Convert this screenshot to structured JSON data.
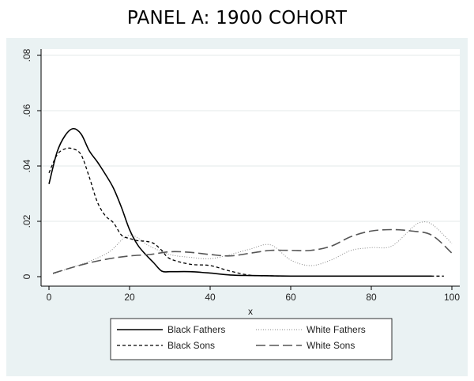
{
  "title": "PANEL A: 1900 COHORT",
  "chart_data": {
    "type": "line",
    "title": "PANEL A: 1900 COHORT",
    "xlabel": "x",
    "ylabel": "",
    "xlim": [
      0,
      100
    ],
    "ylim": [
      0,
      0.08
    ],
    "x_ticks": [
      0,
      20,
      40,
      60,
      80,
      100
    ],
    "x_tick_labels": [
      "0",
      "20",
      "40",
      "60",
      "80",
      "100"
    ],
    "y_ticks": [
      0,
      0.02,
      0.04,
      0.06,
      0.08
    ],
    "y_tick_labels": [
      "0",
      ".02",
      ".04",
      ".06",
      ".08"
    ],
    "grid": true,
    "legend_position": "bottom",
    "series": [
      {
        "name": "Black Fathers",
        "style": "solid",
        "color": "#000000",
        "x": [
          0,
          2,
          4,
          6,
          8,
          10,
          12,
          14,
          16,
          18,
          20,
          22,
          24,
          26,
          28,
          30,
          35,
          40,
          45,
          50,
          55,
          60,
          70,
          80,
          90,
          95
        ],
        "y": [
          0.0335,
          0.045,
          0.051,
          0.0535,
          0.0515,
          0.0455,
          0.0415,
          0.037,
          0.032,
          0.025,
          0.017,
          0.0115,
          0.008,
          0.005,
          0.002,
          0.0018,
          0.0018,
          0.0013,
          0.0006,
          0.0004,
          0.0003,
          0.0002,
          0.0002,
          0.0002,
          0.0002,
          0.0002
        ]
      },
      {
        "name": "White Fathers",
        "style": "dotted",
        "color": "#888888",
        "x": [
          1,
          5,
          10,
          15,
          20,
          25,
          30,
          35,
          40,
          45,
          50,
          55,
          60,
          65,
          70,
          75,
          80,
          85,
          90,
          92,
          95,
          100
        ],
        "y": [
          0.001,
          0.003,
          0.0055,
          0.009,
          0.015,
          0.011,
          0.008,
          0.007,
          0.0065,
          0.008,
          0.01,
          0.0115,
          0.006,
          0.004,
          0.006,
          0.0095,
          0.0105,
          0.011,
          0.0175,
          0.0195,
          0.019,
          0.012
        ]
      },
      {
        "name": "Black Sons",
        "style": "dashed-short",
        "color": "#000000",
        "x": [
          0,
          2,
          4,
          6,
          8,
          10,
          12,
          14,
          16,
          18,
          20,
          22,
          24,
          26,
          28,
          30,
          35,
          40,
          45,
          50,
          55,
          60,
          70,
          80,
          90,
          98
        ],
        "y": [
          0.0375,
          0.044,
          0.0462,
          0.0462,
          0.044,
          0.036,
          0.027,
          0.022,
          0.0195,
          0.015,
          0.0138,
          0.013,
          0.0128,
          0.012,
          0.0095,
          0.0065,
          0.0045,
          0.004,
          0.002,
          0.0005,
          0.0003,
          0.0002,
          0.0002,
          0.0002,
          0.0002,
          0.0002
        ]
      },
      {
        "name": "White Sons",
        "style": "dashed-long",
        "color": "#555555",
        "x": [
          1,
          5,
          10,
          15,
          20,
          25,
          30,
          35,
          40,
          45,
          50,
          55,
          60,
          65,
          70,
          75,
          80,
          85,
          90,
          95,
          100
        ],
        "y": [
          0.0012,
          0.003,
          0.005,
          0.0065,
          0.0075,
          0.008,
          0.009,
          0.0088,
          0.008,
          0.0075,
          0.0085,
          0.0095,
          0.0095,
          0.0095,
          0.011,
          0.0145,
          0.0165,
          0.017,
          0.0165,
          0.015,
          0.0085
        ]
      }
    ],
    "legend": [
      {
        "label": "Black Fathers",
        "series": "Black Fathers"
      },
      {
        "label": "White Fathers",
        "series": "White Fathers"
      },
      {
        "label": "Black Sons",
        "series": "Black Sons"
      },
      {
        "label": "White Sons",
        "series": "White Sons"
      }
    ]
  }
}
